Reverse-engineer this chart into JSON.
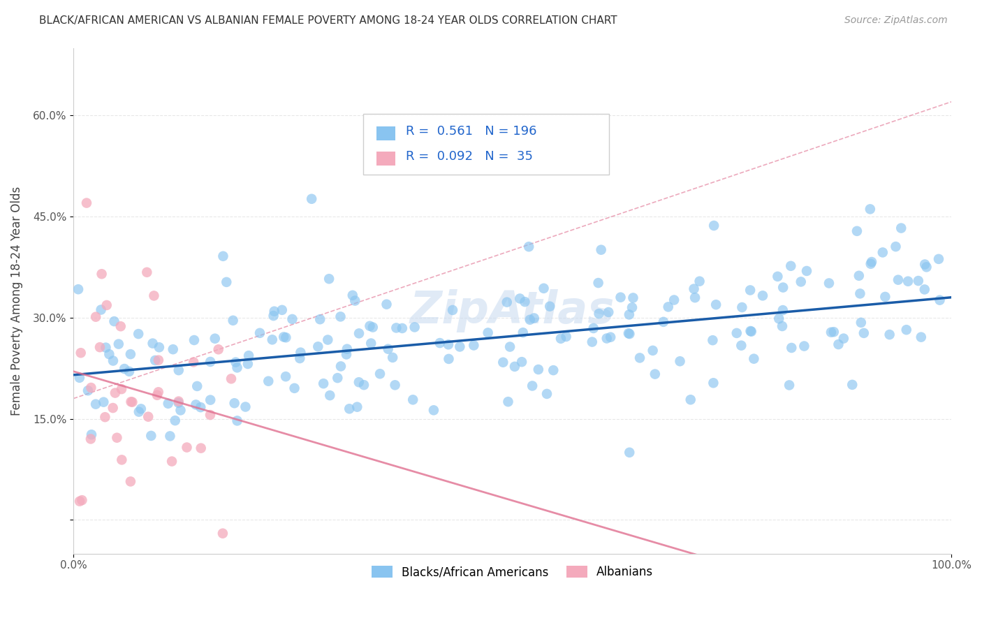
{
  "title": "BLACK/AFRICAN AMERICAN VS ALBANIAN FEMALE POVERTY AMONG 18-24 YEAR OLDS CORRELATION CHART",
  "source": "Source: ZipAtlas.com",
  "ylabel": "Female Poverty Among 18-24 Year Olds",
  "xlim": [
    0,
    1.0
  ],
  "ylim": [
    -0.05,
    0.7
  ],
  "yticks": [
    0.0,
    0.15,
    0.3,
    0.45,
    0.6
  ],
  "ytick_labels": [
    "",
    "15.0%",
    "30.0%",
    "45.0%",
    "60.0%"
  ],
  "blue_color": "#89C4F0",
  "blue_line_color": "#1A5CA8",
  "pink_color": "#F4AABC",
  "pink_line_color": "#E07090",
  "legend_R_blue": "0.561",
  "legend_N_blue": "196",
  "legend_R_pink": "0.092",
  "legend_N_pink": "35",
  "legend_label_blue": "Blacks/African Americans",
  "legend_label_pink": "Albanians",
  "background_color": "#ffffff",
  "grid_color": "#e8e8e8",
  "watermark": "ZipAtlas",
  "text_color": "#2266CC",
  "title_color": "#333333",
  "source_color": "#999999"
}
